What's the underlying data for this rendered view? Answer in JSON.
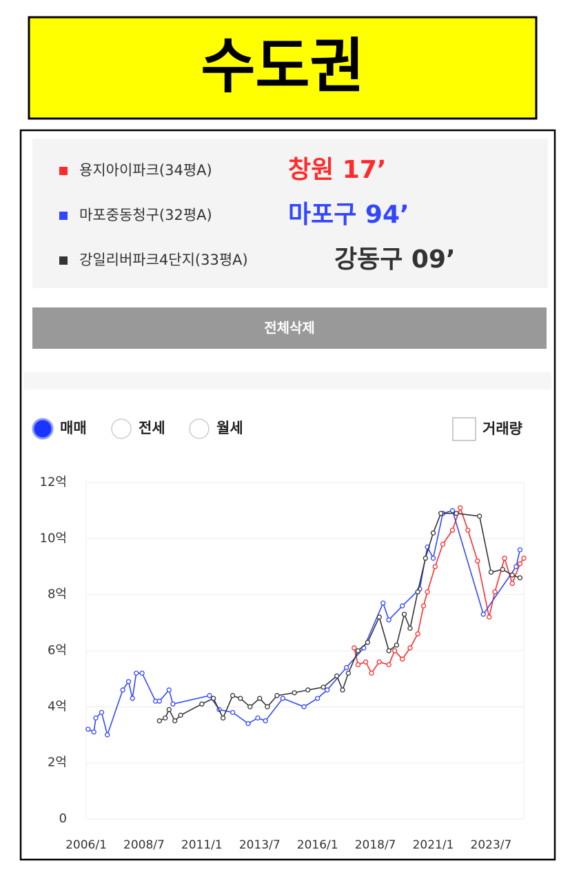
{
  "header": {
    "title": "수도권"
  },
  "button": "전체삭제",
  "controls": {
    "radios": [
      "매매",
      "전세",
      "월세"
    ],
    "selected": 0,
    "checkbox": "거래량"
  },
  "chart_data": {
    "type": "line",
    "xlim": [
      "2006/1",
      "2024/12"
    ],
    "xticks": [
      "2006/1",
      "2008/7",
      "2011/1",
      "2013/7",
      "2016/1",
      "2018/7",
      "2021/1",
      "2023/7"
    ],
    "ylim": [
      0,
      12
    ],
    "yticks": [
      0,
      {
        "value": 2,
        "label": "2억"
      },
      {
        "value": 4,
        "label": "4억"
      },
      {
        "value": 6,
        "label": "6억"
      },
      {
        "value": 8,
        "label": "8억"
      },
      {
        "value": 10,
        "label": "10억"
      },
      {
        "value": 12,
        "label": "12억"
      }
    ],
    "grid": true,
    "series": [
      {
        "name": "용지아이파크(34평A)",
        "note": "창원 17’",
        "color": "#ff2a2a",
        "x": [
          "2017/8",
          "2017/10",
          "2018/2",
          "2018/5",
          "2018/9",
          "2019/2",
          "2019/5",
          "2019/9",
          "2020/1",
          "2020/5",
          "2020/8",
          "2020/10",
          "2021/2",
          "2021/6",
          "2021/11",
          "2022/3",
          "2022/7",
          "2022/12",
          "2023/6",
          "2023/9",
          "2024/2",
          "2024/6",
          "2024/10",
          "2024/12"
        ],
        "values": [
          6.1,
          5.5,
          5.6,
          5.2,
          5.6,
          5.5,
          6.0,
          5.7,
          6.1,
          6.6,
          7.6,
          8.1,
          9.0,
          9.8,
          10.3,
          11.1,
          10.3,
          9.2,
          7.2,
          8.1,
          9.3,
          8.4,
          9.1,
          9.3
        ]
      },
      {
        "name": "마포중동청구(32평A)",
        "note": "마포구 94’",
        "color": "#3246ff",
        "x": [
          "2006/2",
          "2006/5",
          "2006/6",
          "2006/9",
          "2006/12",
          "2007/8",
          "2007/11",
          "2008/1",
          "2008/3",
          "2008/6",
          "2009/1",
          "2009/3",
          "2009/8",
          "2009/10",
          "2011/5",
          "2011/10",
          "2012/5",
          "2013/1",
          "2013/6",
          "2013/10",
          "2014/7",
          "2015/6",
          "2016/1",
          "2016/6",
          "2017/4",
          "2018/1",
          "2018/11",
          "2019/2",
          "2019/9",
          "2020/6",
          "2020/10",
          "2021/1",
          "2021/6",
          "2021/11",
          "2023/3",
          "2024/8",
          "2024/10"
        ],
        "values": [
          3.2,
          3.1,
          3.6,
          3.8,
          3.0,
          4.6,
          4.9,
          4.3,
          5.2,
          5.2,
          4.2,
          4.2,
          4.6,
          4.1,
          4.4,
          3.9,
          3.8,
          3.4,
          3.6,
          3.5,
          4.3,
          4.0,
          4.3,
          4.6,
          5.4,
          6.1,
          7.7,
          7.1,
          7.6,
          8.2,
          9.7,
          9.3,
          10.9,
          11.0,
          7.3,
          9.0,
          9.6
        ]
      },
      {
        "name": "강일리버파크4단지(33평A)",
        "note": "강동구 09’",
        "color": "#333333",
        "x": [
          "2009/3",
          "2009/6",
          "2009/8",
          "2009/11",
          "2010/2",
          "2011/1",
          "2011/7",
          "2011/12",
          "2012/5",
          "2012/9",
          "2013/2",
          "2013/7",
          "2013/11",
          "2014/4",
          "2015/1",
          "2015/8",
          "2016/4",
          "2016/11",
          "2017/2",
          "2017/5",
          "2017/10",
          "2018/3",
          "2018/9",
          "2019/2",
          "2019/6",
          "2019/10",
          "2020/1",
          "2020/5",
          "2020/9",
          "2021/1",
          "2021/5",
          "2022/1",
          "2023/1",
          "2023/7",
          "2024/1",
          "2024/6",
          "2024/10"
        ],
        "values": [
          3.5,
          3.6,
          3.9,
          3.5,
          3.7,
          4.1,
          4.3,
          3.6,
          4.4,
          4.3,
          4.0,
          4.3,
          4.0,
          4.4,
          4.5,
          4.6,
          4.7,
          5.1,
          4.6,
          5.2,
          6.0,
          6.3,
          7.2,
          6.0,
          6.2,
          7.3,
          6.8,
          8.1,
          9.3,
          10.2,
          10.9,
          10.9,
          10.8,
          8.8,
          8.9,
          8.7,
          8.6
        ]
      }
    ]
  }
}
